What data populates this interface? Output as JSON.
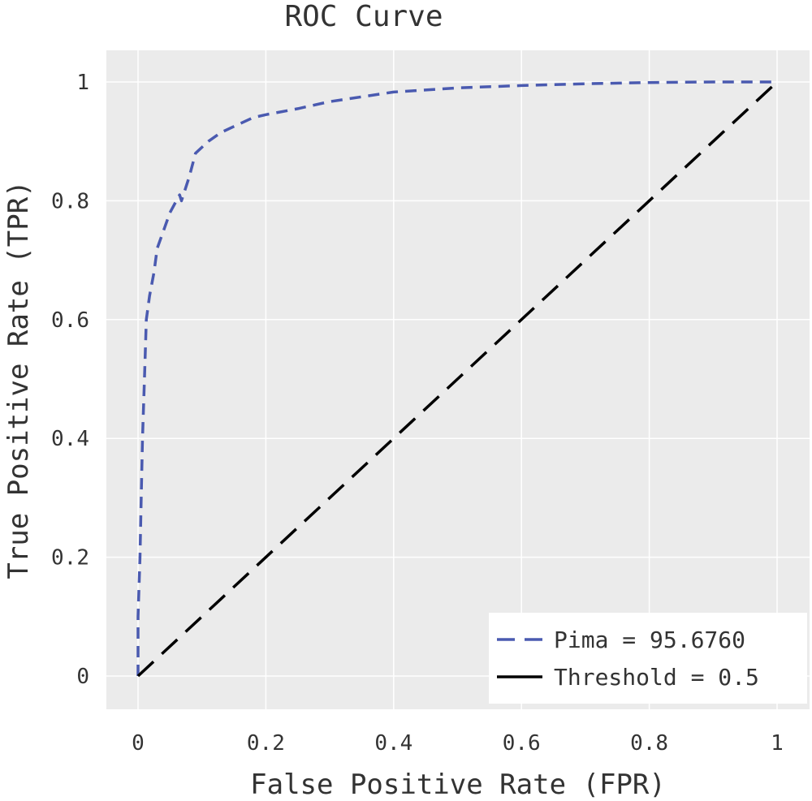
{
  "chart_data": {
    "type": "line",
    "title": "ROC Curve",
    "xlabel": "False Positive Rate (FPR)",
    "ylabel": "True Positive Rate (TPR)",
    "xlim": [
      -0.05,
      1.05
    ],
    "ylim": [
      -0.05,
      1.05
    ],
    "xticks": [
      0,
      0.2,
      0.4,
      0.6,
      0.8,
      1
    ],
    "xtick_labels": [
      "0",
      "0.2",
      "0.4",
      "0.6",
      "0.8",
      "1"
    ],
    "yticks": [
      0,
      0.2,
      0.4,
      0.6,
      0.8,
      1
    ],
    "ytick_labels": [
      "0",
      "0.2",
      "0.4",
      "0.6",
      "0.8",
      "1"
    ],
    "grid": true,
    "legend_position": "bottom-right",
    "series": [
      {
        "name": "Pima = 95.6760",
        "color": "#4a5ab0",
        "dash": "dashed",
        "x": [
          0,
          0.0,
          0.003,
          0.005,
          0.007,
          0.01,
          0.013,
          0.018,
          0.025,
          0.03,
          0.04,
          0.05,
          0.06,
          0.065,
          0.068,
          0.08,
          0.09,
          0.11,
          0.13,
          0.16,
          0.18,
          0.2,
          0.25,
          0.3,
          0.35,
          0.4,
          0.5,
          0.6,
          0.7,
          0.8,
          0.9,
          1.0
        ],
        "y": [
          0,
          0.1,
          0.2,
          0.3,
          0.4,
          0.5,
          0.6,
          0.64,
          0.68,
          0.72,
          0.75,
          0.78,
          0.8,
          0.81,
          0.8,
          0.84,
          0.88,
          0.9,
          0.915,
          0.93,
          0.94,
          0.945,
          0.955,
          0.967,
          0.975,
          0.983,
          0.99,
          0.994,
          0.997,
          0.999,
          1.0,
          1.0
        ]
      },
      {
        "name": "Threshold = 0.5",
        "color": "#000000",
        "dash": "dashed",
        "x": [
          0,
          1
        ],
        "y": [
          0,
          1
        ]
      }
    ]
  }
}
